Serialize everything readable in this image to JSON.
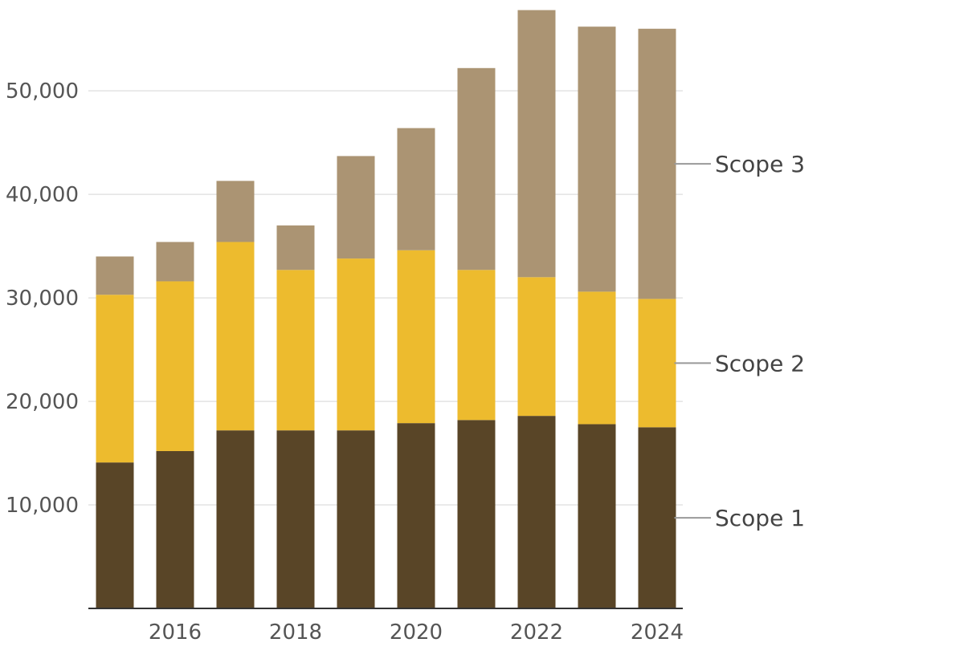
{
  "chart_data": {
    "type": "bar",
    "stacked": true,
    "title": "",
    "xlabel": "",
    "ylabel": "",
    "categories": [
      "2015",
      "2016",
      "2017",
      "2018",
      "2019",
      "2020",
      "2021",
      "2022",
      "2023",
      "2024"
    ],
    "x_tick_labels": [
      "2016",
      "2018",
      "2020",
      "2022",
      "2024"
    ],
    "y_tick_labels": [
      "10,000",
      "20,000",
      "30,000",
      "40,000",
      "50,000"
    ],
    "y_ticks": [
      10000,
      20000,
      30000,
      40000,
      50000
    ],
    "ylim": [
      0,
      58000
    ],
    "grid": true,
    "legend_position": "right, inline labels",
    "series": [
      {
        "name": "Scope 1",
        "color": "#594527",
        "values": [
          14100,
          15200,
          17200,
          17200,
          17200,
          17900,
          18200,
          18600,
          17800,
          17500
        ]
      },
      {
        "name": "Scope 2",
        "color": "#edbb2e",
        "values": [
          16200,
          16400,
          18200,
          15500,
          16600,
          16700,
          14500,
          13400,
          12800,
          12400
        ]
      },
      {
        "name": "Scope 3",
        "color": "#ab9473",
        "values": [
          3700,
          3800,
          5900,
          4300,
          9900,
          11800,
          19500,
          25800,
          25600,
          26100
        ]
      }
    ]
  }
}
